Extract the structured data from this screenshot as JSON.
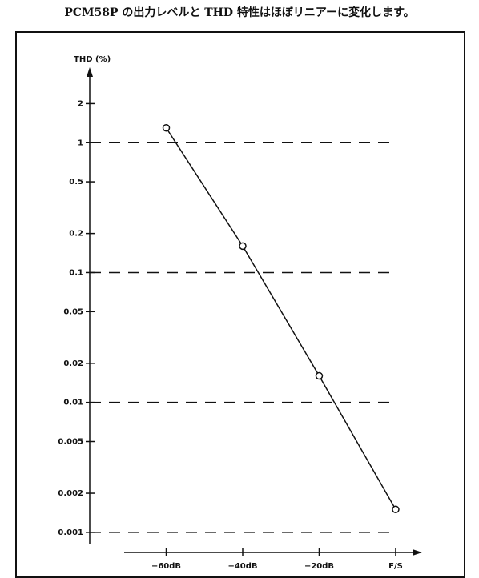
{
  "chart_data": {
    "type": "line",
    "title": "PCM58P の出力レベルと THD 特性はほぼリニアーに変化します。",
    "y_label": "THD (%)",
    "x": [
      -60,
      -40,
      -20,
      0
    ],
    "series": [
      {
        "color": "#111111",
        "values": [
          1.3,
          0.16,
          0.016,
          0.0015
        ]
      }
    ],
    "xlim": [
      -71,
      6.5
    ],
    "xticks": [
      {
        "value": -60,
        "label": "−60dB"
      },
      {
        "value": -40,
        "label": "−40dB"
      },
      {
        "value": -20,
        "label": "−20dB"
      },
      {
        "value": 0,
        "label": "F/S"
      }
    ],
    "ylim": [
      0.0007,
      3.5
    ],
    "yticks": [
      2,
      1,
      0.5,
      0.2,
      0.1,
      0.05,
      0.02,
      0.01,
      0.005,
      0.002,
      0.001
    ],
    "y_log": true,
    "grid": "dashed-decades"
  }
}
